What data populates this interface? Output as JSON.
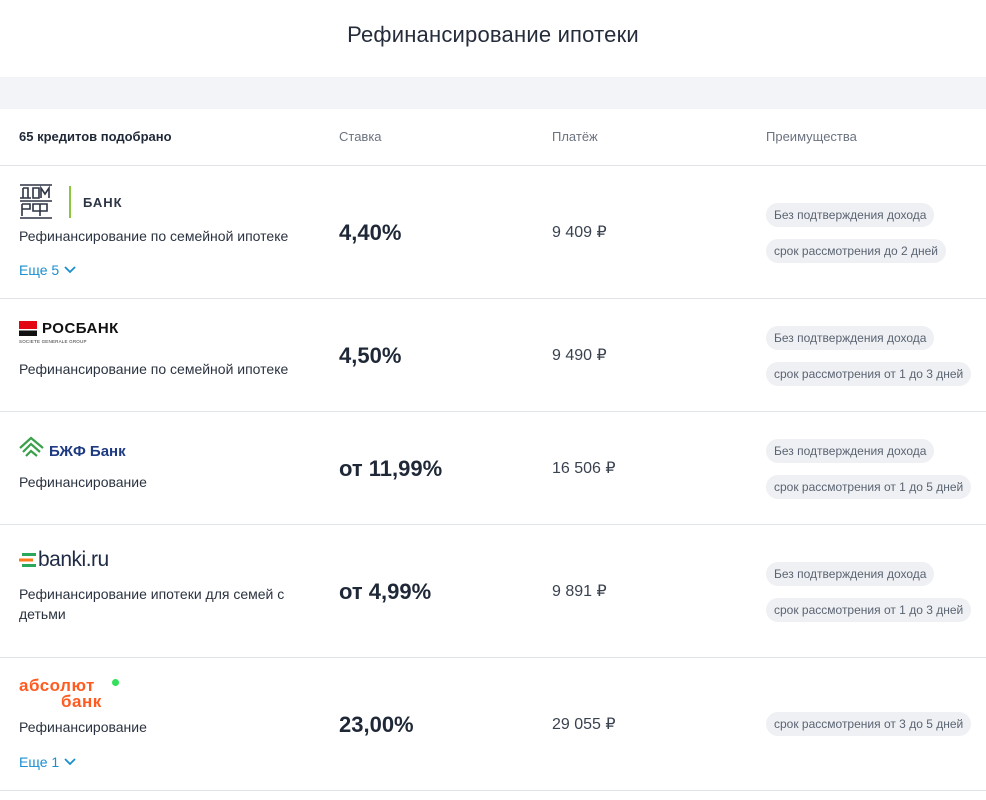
{
  "page": {
    "title": "Рефинансирование ипотеки"
  },
  "list_header": {
    "count": "65 кредитов подобрано",
    "rate": "Ставка",
    "payment": "Платёж",
    "advantages": "Преимущества"
  },
  "offers": [
    {
      "bank_logo_text": "БАНК",
      "product": "Рефинансирование по семейной ипотеке",
      "rate": "4,40%",
      "payment": "9 409 ₽",
      "advantages": [
        "Без подтверждения дохода",
        "срок рассмотрения до 2 дней"
      ],
      "more": "Еще 5"
    },
    {
      "bank_logo_text": "РОСБАНК",
      "bank_logo_subtext": "SOCIETE GENERALE GROUP",
      "product": "Рефинансирование по семейной ипотеке",
      "rate": "4,50%",
      "payment": "9 490 ₽",
      "advantages": [
        "Без подтверждения дохода",
        "срок рассмотрения от 1 до 3 дней"
      ]
    },
    {
      "bank_logo_text": "БЖФ Банк",
      "product": "Рефинансирование",
      "rate": "от 11,99%",
      "payment": "16 506 ₽",
      "advantages": [
        "Без подтверждения дохода",
        "срок рассмотрения от 1 до 5 дней"
      ]
    },
    {
      "bank_logo_text": "banki.ru",
      "product": "Рефинансирование ипотеки для семей с детьми",
      "rate": "от 4,99%",
      "payment": "9 891 ₽",
      "advantages": [
        "Без подтверждения дохода",
        "срок рассмотрения от 1 до 3 дней"
      ]
    },
    {
      "bank_logo_text": "абсолют",
      "bank_logo_text2": "банк",
      "product": "Рефинансирование",
      "rate": "23,00%",
      "payment": "29 055 ₽",
      "advantages": [
        "срок рассмотрения от 3 до 5 дней"
      ],
      "more": "Еще 1"
    }
  ],
  "colors": {
    "link": "#1a8fd0",
    "chip_bg": "#eef0f3",
    "domrf_divider": "#8cc63f",
    "rosbank_red": "#e30613",
    "bjf_green": "#3aa04a",
    "banki_green": "#2ca85a",
    "banki_orange": "#ff7a1a",
    "absolut_orange": "#ff5a1f",
    "absolut_dot": "#32e05a"
  }
}
